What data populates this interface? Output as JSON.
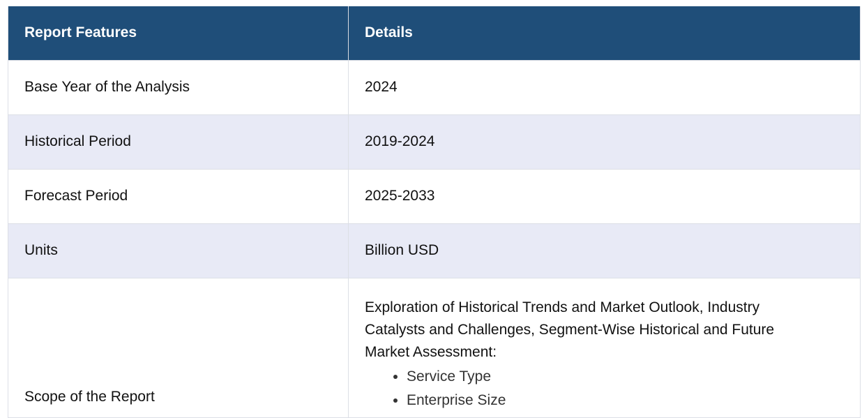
{
  "table": {
    "headers": [
      "Report Features",
      "Details"
    ],
    "rows": [
      {
        "feature": "Base Year of the Analysis",
        "detail": "2024"
      },
      {
        "feature": "Historical Period",
        "detail": "2019-2024"
      },
      {
        "feature": "Forecast Period",
        "detail": "2025-2033"
      },
      {
        "feature": "Units",
        "detail": "Billion USD"
      }
    ],
    "scope": {
      "feature": "Scope of the Report",
      "intro": "Exploration of Historical Trends and Market Outlook, Industry Catalysts and Challenges, Segment-Wise Historical and Future Market Assessment:",
      "items": [
        "Service Type",
        "Enterprise Size"
      ]
    }
  },
  "colors": {
    "header_bg": "#1f4e79",
    "header_text": "#ffffff",
    "alt_row_bg": "#e8eaf6",
    "border": "#dcdfe6"
  }
}
